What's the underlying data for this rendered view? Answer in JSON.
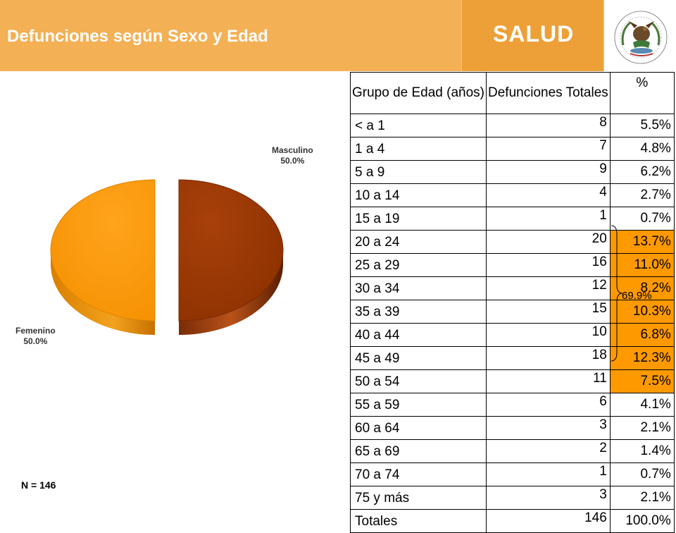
{
  "header": {
    "title": "Defunciones según Sexo y Edad",
    "brand": "SALUD",
    "colors": {
      "left_band": "#F4B055",
      "middle_band": "#EDA037",
      "title_text": "#ffffff"
    }
  },
  "chart_data": [
    {
      "type": "pie",
      "style": "3d-exploded",
      "slices": [
        {
          "label": "Masculino",
          "value": 50.0,
          "value_label": "50.0%",
          "color": "#993300"
        },
        {
          "label": "Femenino",
          "value": 50.0,
          "value_label": "50.0%",
          "color": "#FF9900"
        }
      ],
      "note": "N = 146"
    },
    {
      "type": "table",
      "columns": [
        "Grupo de Edad (años)",
        "Defunciones Totales",
        "%"
      ],
      "rows": [
        {
          "group": "< a 1",
          "deaths": "8",
          "pct": "5.5%",
          "highlight": false
        },
        {
          "group": "1 a 4",
          "deaths": "7",
          "pct": "4.8%",
          "highlight": false
        },
        {
          "group": "5 a 9",
          "deaths": "9",
          "pct": "6.2%",
          "highlight": false
        },
        {
          "group": "10 a 14",
          "deaths": "4",
          "pct": "2.7%",
          "highlight": false
        },
        {
          "group": "15 a 19",
          "deaths": "1",
          "pct": "0.7%",
          "highlight": false
        },
        {
          "group": "20 a 24",
          "deaths": "20",
          "pct": "13.7%",
          "highlight": true
        },
        {
          "group": "25 a 29",
          "deaths": "16",
          "pct": "11.0%",
          "highlight": true
        },
        {
          "group": "30 a 34",
          "deaths": "12",
          "pct": "8.2%",
          "highlight": true
        },
        {
          "group": "35 a 39",
          "deaths": "15",
          "pct": "10.3%",
          "highlight": true
        },
        {
          "group": "40 a 44",
          "deaths": "10",
          "pct": "6.8%",
          "highlight": true
        },
        {
          "group": "45 a 49",
          "deaths": "18",
          "pct": "12.3%",
          "highlight": true
        },
        {
          "group": "50 a 54",
          "deaths": "11",
          "pct": "7.5%",
          "highlight": true
        },
        {
          "group": "55 a 59",
          "deaths": "6",
          "pct": "4.1%",
          "highlight": false
        },
        {
          "group": "60 a 64",
          "deaths": "3",
          "pct": "2.1%",
          "highlight": false
        },
        {
          "group": "65 a 69",
          "deaths": "2",
          "pct": "1.4%",
          "highlight": false
        },
        {
          "group": "70 a 74",
          "deaths": "1",
          "pct": "0.7%",
          "highlight": false
        },
        {
          "group": "75 y más",
          "deaths": "3",
          "pct": "2.1%",
          "highlight": false
        },
        {
          "group": "Totales",
          "deaths": "146",
          "pct": "100.0%",
          "highlight": false
        }
      ],
      "highlight_color": "#FF9900",
      "bracket": {
        "label": "69.9%",
        "from": "20 a 24",
        "to": "50 a 54"
      }
    }
  ]
}
